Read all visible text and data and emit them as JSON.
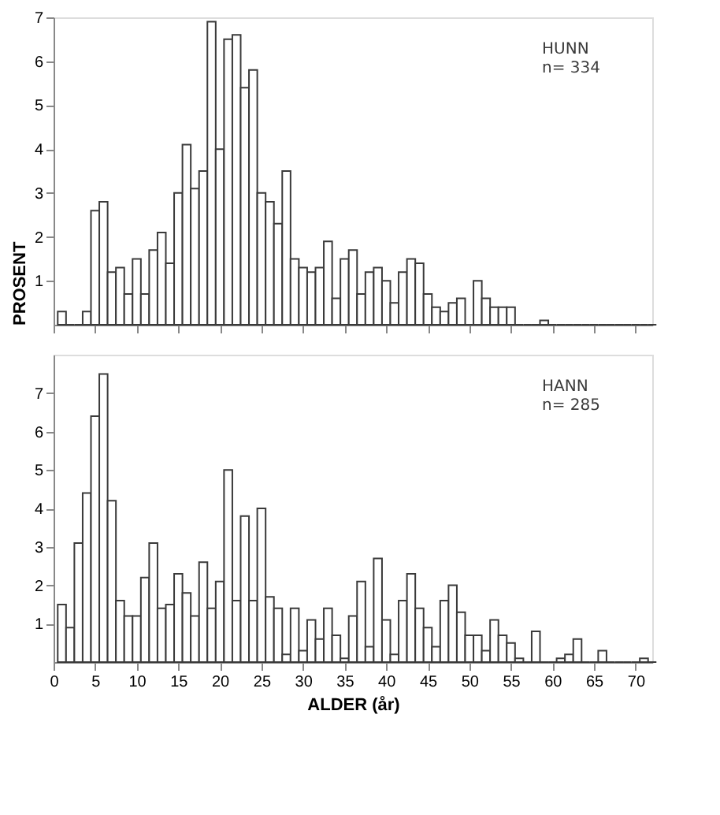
{
  "chart_data": [
    {
      "type": "histogram",
      "ylabel": "PROSENT",
      "color": "#3a3a3a",
      "grid": false,
      "tick_labels": "y",
      "annotations": [
        "HUNN\nn= 334"
      ],
      "bins": [
        0.5,
        1.5,
        2.5,
        3.5,
        4.5,
        5.5,
        6.5,
        7.5,
        8.5,
        9.5,
        10.5,
        11.5,
        12.5,
        13.5,
        14.5,
        15.5,
        16.5,
        17.5,
        18.5,
        19.5,
        20.5,
        21.5,
        22.5,
        23.5,
        24.5,
        25.5,
        26.5,
        27.5,
        28.5,
        29.5,
        30.5,
        31.5,
        32.5,
        33.5,
        34.5,
        35.5,
        36.5,
        37.5,
        38.5,
        39.5,
        40.5,
        41.5,
        42.5,
        43.5,
        44.5,
        45.5,
        46.5,
        47.5,
        48.5,
        49.5,
        50.5,
        51.5,
        52.5,
        53.5,
        54.5,
        55.5,
        56.5,
        57.5,
        58.5,
        59.5,
        60.5,
        61.5,
        62.5,
        63.5,
        64.5,
        65.5,
        66.5,
        67.5,
        68.5,
        69.5,
        70.5,
        71.5,
        72.5
      ],
      "values": [
        0.3,
        0,
        0,
        0.3,
        2.6,
        2.8,
        1.2,
        1.3,
        0.7,
        1.5,
        0.7,
        1.7,
        2.1,
        1.4,
        3.0,
        4.1,
        3.1,
        3.5,
        6.9,
        4.0,
        6.5,
        6.6,
        5.4,
        5.8,
        3.0,
        2.8,
        2.3,
        3.5,
        1.5,
        1.3,
        1.2,
        1.3,
        1.9,
        0.6,
        1.5,
        1.7,
        0.7,
        1.2,
        1.3,
        1.0,
        0.5,
        1.2,
        1.5,
        1.4,
        0.7,
        0.4,
        0.3,
        0.5,
        0.6,
        0,
        1.0,
        0.6,
        0.4,
        0.4,
        0.4,
        0,
        0,
        0,
        0.1,
        0,
        0,
        0,
        0,
        0,
        0,
        0,
        0,
        0,
        0,
        0,
        0,
        0
      ],
      "xlim": [
        0,
        72
      ],
      "xticks": [
        0,
        5,
        10,
        15,
        20,
        25,
        30,
        35,
        40,
        45,
        50,
        55,
        60,
        65,
        70
      ],
      "ylim": [
        0,
        7
      ],
      "yticks": [
        1,
        2,
        3,
        4,
        5,
        6,
        7
      ]
    },
    {
      "type": "histogram",
      "xlabel": "ALDER (år)",
      "color": "#3a3a3a",
      "grid": false,
      "annotations": [
        "HANN\nn= 285"
      ],
      "bins": [
        0.5,
        1.5,
        2.5,
        3.5,
        4.5,
        5.5,
        6.5,
        7.5,
        8.5,
        9.5,
        10.5,
        11.5,
        12.5,
        13.5,
        14.5,
        15.5,
        16.5,
        17.5,
        18.5,
        19.5,
        20.5,
        21.5,
        22.5,
        23.5,
        24.5,
        25.5,
        26.5,
        27.5,
        28.5,
        29.5,
        30.5,
        31.5,
        32.5,
        33.5,
        34.5,
        35.5,
        36.5,
        37.5,
        38.5,
        39.5,
        40.5,
        41.5,
        42.5,
        43.5,
        44.5,
        45.5,
        46.5,
        47.5,
        48.5,
        49.5,
        50.5,
        51.5,
        52.5,
        53.5,
        54.5,
        55.5,
        56.5,
        57.5,
        58.5,
        59.5,
        60.5,
        61.5,
        62.5,
        63.5,
        64.5,
        65.5,
        66.5,
        67.5,
        68.5,
        69.5,
        70.5,
        71.5,
        72.5
      ],
      "values": [
        1.5,
        0.9,
        3.1,
        4.4,
        6.4,
        7.5,
        4.2,
        1.6,
        1.2,
        1.2,
        2.2,
        3.1,
        1.4,
        1.5,
        2.3,
        1.8,
        1.2,
        2.6,
        1.4,
        2.1,
        5.0,
        1.6,
        3.8,
        1.6,
        4.0,
        1.7,
        1.4,
        0.2,
        1.4,
        0.3,
        1.1,
        0.6,
        1.4,
        0.7,
        0.1,
        1.2,
        2.1,
        0.4,
        2.7,
        1.1,
        0.2,
        1.6,
        2.3,
        1.4,
        0.9,
        0.4,
        1.6,
        2.0,
        1.3,
        0.7,
        0.7,
        0.3,
        1.1,
        0.7,
        0.5,
        0.1,
        0,
        0.8,
        0,
        0,
        0.1,
        0.2,
        0.6,
        0,
        0,
        0.3,
        0,
        0,
        0,
        0,
        0.1,
        0
      ],
      "xlim": [
        0,
        72
      ],
      "xticks": [
        0,
        5,
        10,
        15,
        20,
        25,
        30,
        35,
        40,
        45,
        50,
        55,
        60,
        65,
        70
      ],
      "ylim": [
        0,
        8
      ],
      "yticks": [
        1,
        2,
        3,
        4,
        5,
        6,
        7
      ]
    }
  ]
}
